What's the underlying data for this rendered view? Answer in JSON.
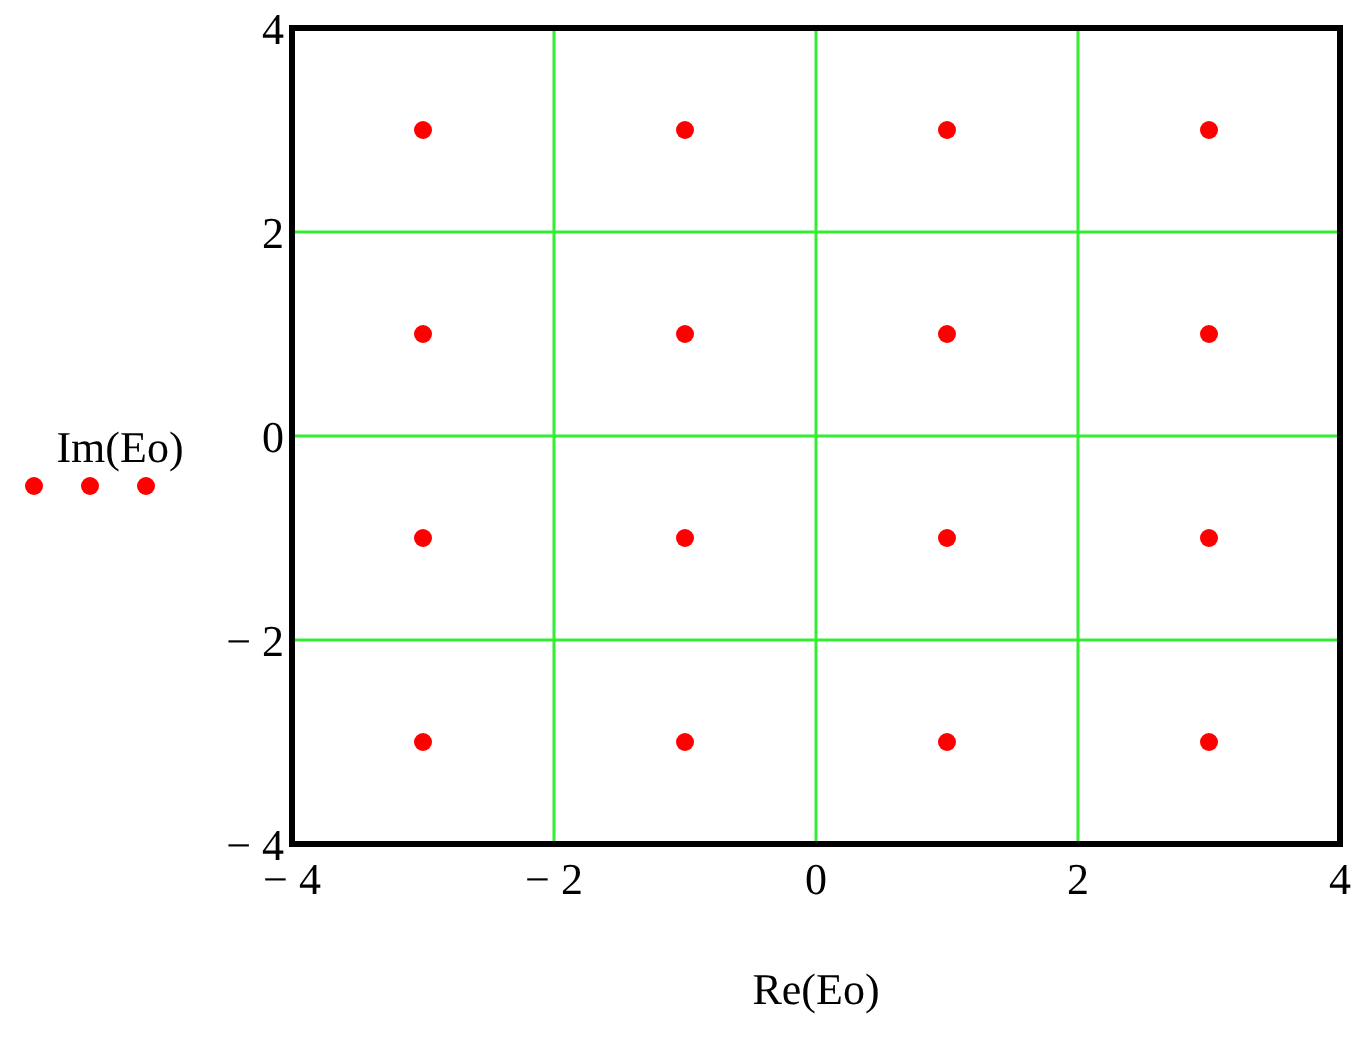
{
  "chart_data": {
    "type": "scatter",
    "xlabel": "Re(Eo)",
    "ylabel": "Im(Eo)",
    "x": [
      -3,
      -1,
      1,
      3,
      -3,
      -1,
      1,
      3,
      -3,
      -1,
      1,
      3,
      -3,
      -1,
      1,
      3
    ],
    "series": [
      {
        "color": "#ff0000",
        "values": [
          3,
          3,
          3,
          3,
          1,
          1,
          1,
          1,
          -1,
          -1,
          -1,
          -1,
          -3,
          -3,
          -3,
          -3
        ]
      }
    ],
    "xlim": [
      -4,
      4
    ],
    "ylim": [
      -4,
      4
    ],
    "xticks": [
      {
        "value": -4,
        "label": "− 4"
      },
      {
        "value": -2,
        "label": "− 2"
      },
      0,
      2,
      4
    ],
    "yticks": [
      {
        "value": -4,
        "label": "− 4"
      },
      {
        "value": -2,
        "label": "− 2"
      },
      0,
      2,
      4
    ],
    "grid": true,
    "marker": "circle"
  }
}
